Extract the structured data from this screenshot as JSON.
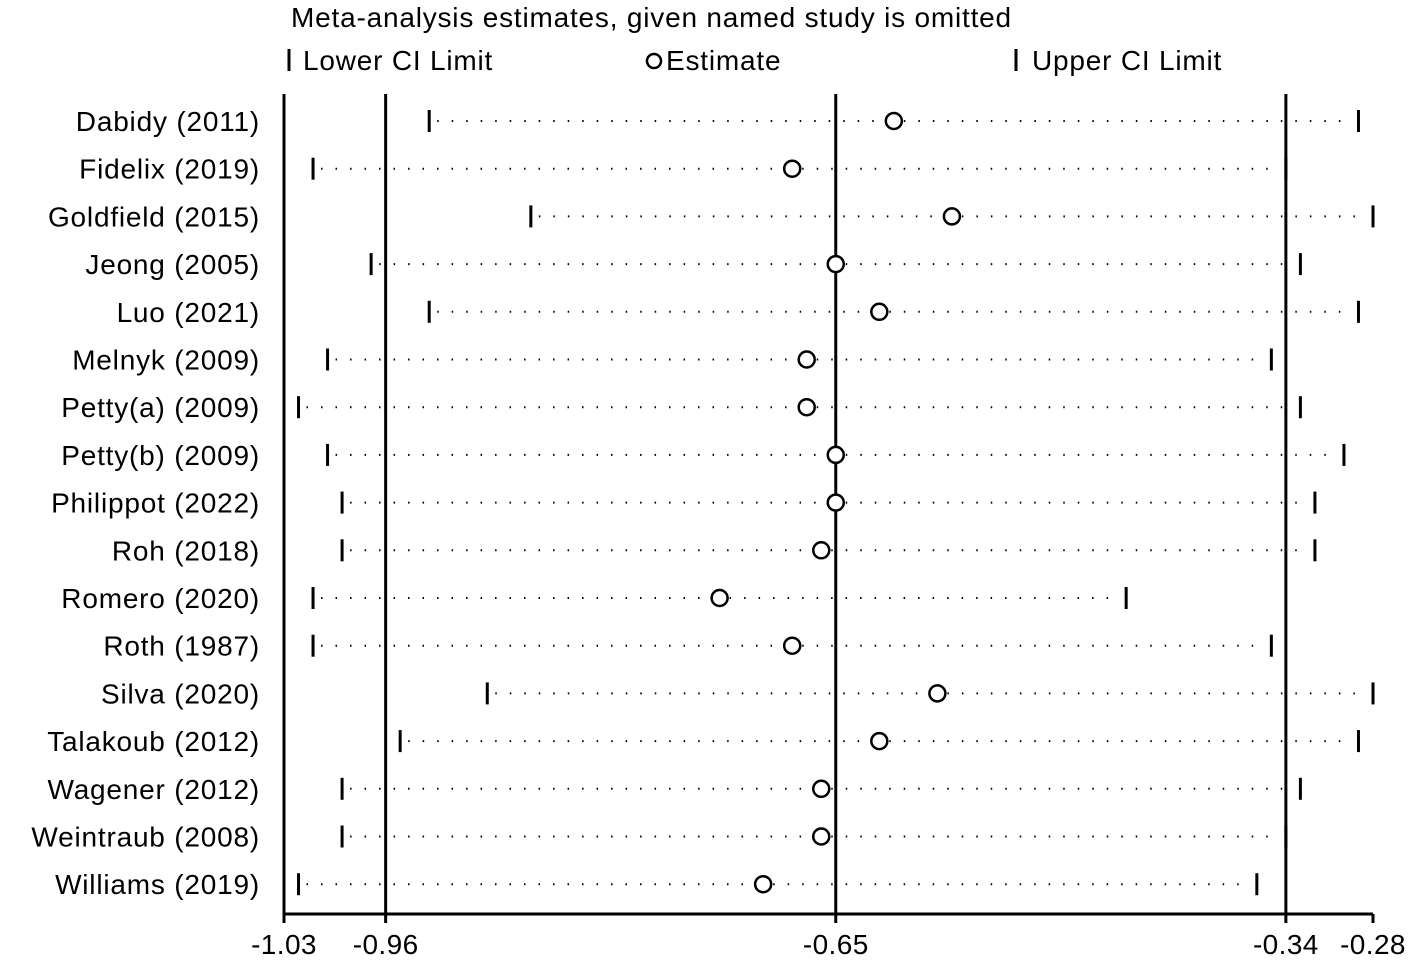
{
  "chart_data": {
    "type": "forest",
    "title": "Meta-analysis estimates, given named study is omitted",
    "legend": {
      "position": "top",
      "entries": [
        {
          "name": "Lower CI Limit",
          "marker": "vertical-line"
        },
        {
          "name": "Estimate",
          "marker": "open-circle"
        },
        {
          "name": "Upper CI Limit",
          "marker": "vertical-line"
        }
      ]
    },
    "x_axis": {
      "ticks": [
        {
          "value": -1.03,
          "label": "-1.03"
        },
        {
          "value": -0.96,
          "label": "-0.96"
        },
        {
          "value": -0.65,
          "label": "-0.65"
        },
        {
          "value": -0.34,
          "label": "-0.34"
        },
        {
          "value": -0.28,
          "label": "-0.28"
        }
      ],
      "range": [
        -1.03,
        -0.28
      ],
      "reference_lines": [
        -0.96,
        -0.65,
        -0.34
      ]
    },
    "studies": [
      {
        "label": "Dabidy (2011)",
        "lower": -0.93,
        "estimate": -0.61,
        "upper": -0.29
      },
      {
        "label": "Fidelix (2019)",
        "lower": -1.01,
        "estimate": -0.68,
        "upper": -0.34
      },
      {
        "label": "Goldfield (2015)",
        "lower": -0.86,
        "estimate": -0.57,
        "upper": -0.28
      },
      {
        "label": "Jeong (2005)",
        "lower": -0.97,
        "estimate": -0.65,
        "upper": -0.33
      },
      {
        "label": "Luo (2021)",
        "lower": -0.93,
        "estimate": -0.62,
        "upper": -0.29
      },
      {
        "label": "Melnyk (2009)",
        "lower": -1.0,
        "estimate": -0.67,
        "upper": -0.35
      },
      {
        "label": "Petty(a) (2009)",
        "lower": -1.02,
        "estimate": -0.67,
        "upper": -0.33
      },
      {
        "label": "Petty(b) (2009)",
        "lower": -1.0,
        "estimate": -0.65,
        "upper": -0.3
      },
      {
        "label": "Philippot (2022)",
        "lower": -0.99,
        "estimate": -0.65,
        "upper": -0.32
      },
      {
        "label": "Roh (2018)",
        "lower": -0.99,
        "estimate": -0.66,
        "upper": -0.32
      },
      {
        "label": "Romero (2020)",
        "lower": -1.01,
        "estimate": -0.73,
        "upper": -0.45
      },
      {
        "label": "Roth (1987)",
        "lower": -1.01,
        "estimate": -0.68,
        "upper": -0.35
      },
      {
        "label": "Silva (2020)",
        "lower": -0.89,
        "estimate": -0.58,
        "upper": -0.28
      },
      {
        "label": "Talakoub (2012)",
        "lower": -0.95,
        "estimate": -0.62,
        "upper": -0.29
      },
      {
        "label": "Wagener (2012)",
        "lower": -0.99,
        "estimate": -0.66,
        "upper": -0.33
      },
      {
        "label": "Weintraub (2008)",
        "lower": -0.99,
        "estimate": -0.66,
        "upper": -0.34
      },
      {
        "label": "Williams (2019)",
        "lower": -1.02,
        "estimate": -0.7,
        "upper": -0.36
      }
    ]
  }
}
